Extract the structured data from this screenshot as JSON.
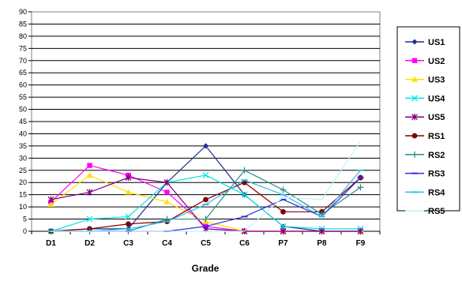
{
  "chart_data": {
    "type": "line",
    "title": "",
    "xlabel": "Grade",
    "ylabel": "",
    "categories": [
      "D1",
      "D2",
      "C3",
      "C4",
      "C5",
      "C6",
      "P7",
      "P8",
      "F9"
    ],
    "ylim": [
      0,
      90
    ],
    "yticks": [
      0,
      5,
      10,
      15,
      20,
      25,
      30,
      35,
      40,
      45,
      50,
      55,
      60,
      65,
      70,
      75,
      80,
      85,
      90
    ],
    "grid": "horizontal",
    "legend_position": "right",
    "series": [
      {
        "name": "US1",
        "color": "#1f2f8f",
        "marker": "diamond",
        "values": [
          0,
          1,
          1,
          20,
          35,
          15,
          2,
          0,
          0
        ]
      },
      {
        "name": "US2",
        "color": "#ff00ff",
        "marker": "square",
        "values": [
          12,
          27,
          23,
          16,
          2,
          0,
          0,
          0,
          0
        ]
      },
      {
        "name": "US3",
        "color": "#ffe000",
        "marker": "triangle",
        "values": [
          11,
          23,
          16,
          12,
          4,
          0,
          0,
          0,
          0
        ]
      },
      {
        "name": "US4",
        "color": "#00e5e5",
        "marker": "x",
        "values": [
          0,
          5,
          6,
          20,
          23,
          15,
          2,
          1,
          1
        ]
      },
      {
        "name": "US5",
        "color": "#800080",
        "marker": "star",
        "values": [
          13,
          16,
          22,
          20,
          1,
          0,
          0,
          0,
          0
        ]
      },
      {
        "name": "RS1",
        "color": "#800000",
        "marker": "circle",
        "values": [
          0,
          1,
          3,
          4,
          13,
          20,
          8,
          8,
          22
        ]
      },
      {
        "name": "RS2",
        "color": "#2e8b8b",
        "marker": "plus",
        "values": [
          0,
          0,
          0,
          5,
          5,
          25,
          17,
          7,
          18
        ]
      },
      {
        "name": "RS3",
        "color": "#3030e0",
        "marker": "dash",
        "values": [
          0,
          0,
          0,
          0,
          2,
          6,
          13,
          6,
          22
        ]
      },
      {
        "name": "RS4",
        "color": "#33bbee",
        "marker": "dash",
        "values": [
          0,
          0,
          1,
          4,
          11,
          21,
          15,
          6,
          25
        ]
      },
      {
        "name": "RS5",
        "color": "#bff0ff",
        "marker": "none",
        "values": [
          0,
          0,
          0,
          0,
          0,
          0,
          14,
          13,
          37
        ]
      }
    ]
  }
}
